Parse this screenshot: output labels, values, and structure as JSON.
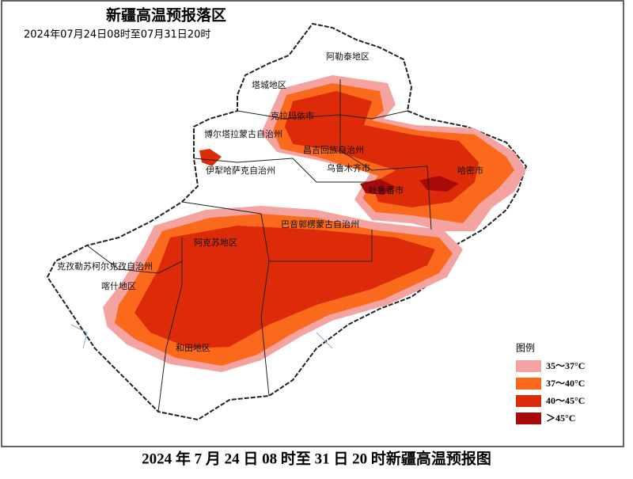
{
  "header": {
    "title": "新疆高温预报落区",
    "subtitle": "2024年07月24日08时至07月31日20时"
  },
  "map": {
    "regions": [
      {
        "label": "阿勒泰地区"
      },
      {
        "label": "塔城地区"
      },
      {
        "label": "克拉玛依市"
      },
      {
        "label": "博尔塔拉蒙古自治州"
      },
      {
        "label": "昌吉回族自治州"
      },
      {
        "label": "伊犁哈萨克自治州"
      },
      {
        "label": "乌鲁木齐市"
      },
      {
        "label": "哈密市"
      },
      {
        "label": "吐鲁番市"
      },
      {
        "label": "巴音郭楞蒙古自治州"
      },
      {
        "label": "阿克苏地区"
      },
      {
        "label": "克孜勒苏柯尔克孜自治州"
      },
      {
        "label": "喀什地区"
      },
      {
        "label": "和田地区"
      }
    ]
  },
  "legend": {
    "title": "图例",
    "items": [
      {
        "label": "35～37°C",
        "color": "#f4a3a0"
      },
      {
        "label": "37～40°C",
        "color": "#fb6a1c"
      },
      {
        "label": "40～45°C",
        "color": "#dd2a08"
      },
      {
        "label": "＞45°C",
        "color": "#a80a0a"
      }
    ]
  },
  "caption": "2024 年 7 月 24 日 08 时至 31 日 20 时新疆高温预报图"
}
